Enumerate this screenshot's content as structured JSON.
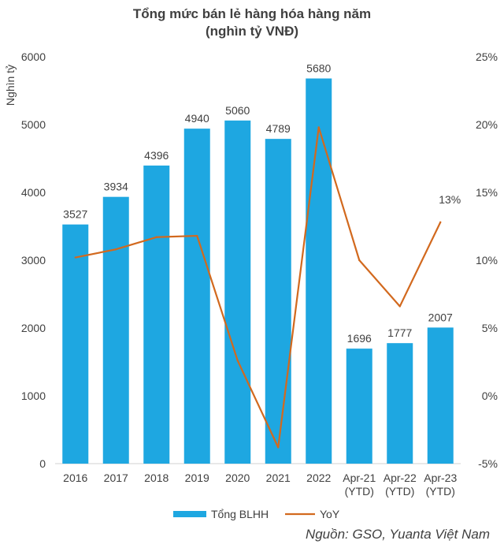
{
  "title_line1": "Tổng mức bán lẻ hàng hóa hàng năm",
  "title_line2": "(nghìn tỷ VNĐ)",
  "source": "Nguồn: GSO, Yuanta Việt Nam",
  "colors": {
    "bar": "#1ea7e1",
    "line": "#d2691e",
    "axis": "#d9d9d9",
    "text": "#404040"
  },
  "chart_data": {
    "type": "bar",
    "categories": [
      "2016",
      "2017",
      "2018",
      "2019",
      "2020",
      "2021",
      "2022",
      "Apr-21\n(YTD)",
      "Apr-22\n(YTD)",
      "Apr-23\n(YTD)"
    ],
    "series": [
      {
        "name": "Tổng BLHH",
        "type": "bar",
        "axis": "left",
        "values": [
          3527,
          3934,
          4396,
          4940,
          5060,
          4789,
          5680,
          1696,
          1777,
          2007
        ],
        "data_labels": [
          "3527",
          "3934",
          "4396",
          "4940",
          "5060",
          "4789",
          "5680",
          "1696",
          "1777",
          "2007"
        ]
      },
      {
        "name": "YoY",
        "type": "line",
        "axis": "right",
        "values": [
          10.2,
          10.8,
          11.7,
          11.8,
          2.6,
          -3.8,
          19.8,
          10.0,
          6.6,
          12.8
        ],
        "data_labels": [
          "",
          "",
          "",
          "",
          "",
          "",
          "",
          "",
          "",
          "13%"
        ]
      }
    ],
    "ylabel": "Nghìn tỷ",
    "ylim": [
      0,
      6000
    ],
    "yticks": [
      "0",
      "1000",
      "2000",
      "3000",
      "4000",
      "5000",
      "6000"
    ],
    "y2lim": [
      -5,
      25
    ],
    "y2ticks": [
      "-5%",
      "0%",
      "5%",
      "10%",
      "15%",
      "20%",
      "25%"
    ],
    "legend": [
      "Tổng BLHH",
      "YoY"
    ],
    "legend_position": "bottom",
    "grid": false
  }
}
